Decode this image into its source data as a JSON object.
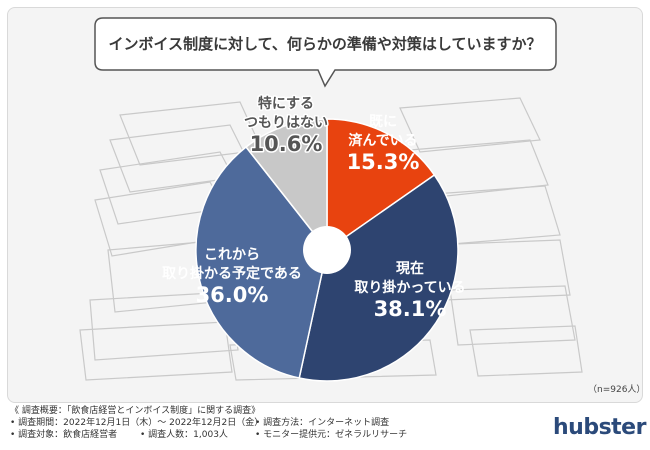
{
  "question": "インボイス制度に対して、何らかの準備や対策はしていますか？",
  "n_note": "（n=926人）",
  "chart_data": {
    "type": "pie",
    "title": "インボイス制度に対して、何らかの準備や対策はしていますか？",
    "slices": [
      {
        "label": [
          "既に",
          "済んでいる"
        ],
        "value": 15.3,
        "display": "15.3%",
        "color": "#e8430f",
        "label_color": "#ffffff"
      },
      {
        "label": [
          "現在",
          "取り掛かっている"
        ],
        "value": 38.1,
        "display": "38.1%",
        "color": "#2e4470",
        "label_color": "#ffffff"
      },
      {
        "label": [
          "これから",
          "取り掛かる予定である"
        ],
        "value": 36.0,
        "display": "36.0%",
        "color": "#4e6a9b",
        "label_color": "#ffffff"
      },
      {
        "label": [
          "特にする",
          "つもりはない"
        ],
        "value": 10.6,
        "display": "10.6%",
        "color": "#c8c8c8",
        "label_color": "#555555"
      }
    ]
  },
  "footer": {
    "title": "《 調査概要：「飲食店経営とインボイス制度」に関する調査》",
    "period": "• 調査期間：2022年12月1日（木）～ 2022年12月2日（金）",
    "method": "• 調査方法：インターネット調査",
    "target": "• 調査対象：飲食店経営者",
    "count": "• 調査人数：1,003人",
    "provider": "• モニター提供元：ゼネラルリサーチ"
  },
  "logo": "hubster",
  "colors": {
    "accent": "#e8430f",
    "navy": "#2e4470",
    "blue": "#4e6a9b",
    "gray": "#c8c8c8"
  }
}
